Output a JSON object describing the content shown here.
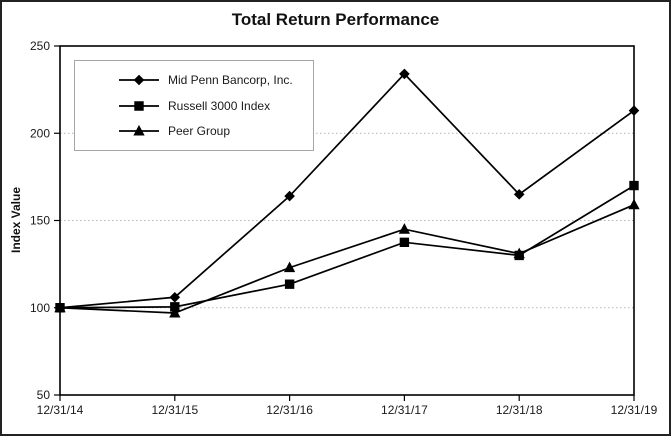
{
  "window": {
    "background_color": "#ffffff",
    "frame_border_color": "#222222"
  },
  "chart_data": {
    "type": "line",
    "title": "Total Return Performance",
    "ylabel": "Index Value",
    "xlabel": "",
    "categories": [
      "12/31/14",
      "12/31/15",
      "12/31/16",
      "12/31/17",
      "12/31/18",
      "12/31/19"
    ],
    "series": [
      {
        "name": "Mid Penn Bancorp, Inc.",
        "marker": "diamond",
        "color": "#000000",
        "values": [
          100,
          106,
          164,
          234,
          165,
          213
        ]
      },
      {
        "name": "Russell 3000 Index",
        "marker": "square",
        "color": "#000000",
        "values": [
          100,
          100.5,
          113.5,
          137.5,
          130,
          170
        ]
      },
      {
        "name": "Peer Group",
        "marker": "triangle",
        "color": "#000000",
        "values": [
          100,
          97,
          123,
          145,
          131,
          159
        ]
      }
    ],
    "ylim": [
      50,
      250
    ],
    "yticks": [
      50,
      100,
      150,
      200,
      250
    ],
    "gridlines": {
      "y_values": [
        100,
        150,
        200
      ],
      "style": "dotted",
      "color": "#b3b3b3"
    },
    "legend_position": "top-left",
    "line_color": "#000000"
  }
}
